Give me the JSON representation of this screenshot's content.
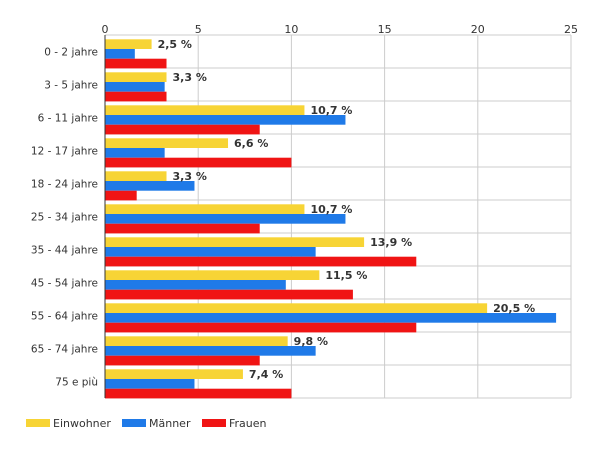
{
  "chart_data": {
    "type": "bar",
    "orientation": "horizontal",
    "categories": [
      "0 - 2 jahre",
      "3 - 5 jahre",
      "6 - 11 jahre",
      "12 - 17 jahre",
      "18 - 24 jahre",
      "25 - 34 jahre",
      "35 - 44 jahre",
      "45 - 54 jahre",
      "55 - 64 jahre",
      "65 - 74 jahre",
      "75 e più"
    ],
    "series": [
      {
        "name": "Einwohner",
        "color": "#f7d435",
        "values": [
          2.5,
          3.3,
          10.7,
          6.6,
          3.3,
          10.7,
          13.9,
          11.5,
          20.5,
          9.8,
          7.4
        ],
        "labels": [
          "2,5 %",
          "3,3 %",
          "10,7 %",
          "6,6 %",
          "3,3 %",
          "10,7 %",
          "13,9 %",
          "11,5 %",
          "20,5 %",
          "9,8 %",
          "7,4 %"
        ]
      },
      {
        "name": "Männer",
        "color": "#1f7ae8",
        "values": [
          1.6,
          3.2,
          12.9,
          3.2,
          4.8,
          12.9,
          11.3,
          9.7,
          24.2,
          11.3,
          4.8
        ]
      },
      {
        "name": "Frauen",
        "color": "#f01414",
        "values": [
          3.3,
          3.3,
          8.3,
          10.0,
          1.7,
          8.3,
          16.7,
          13.3,
          16.7,
          8.3,
          10.0
        ]
      }
    ],
    "xlim": [
      0,
      25
    ],
    "xticks": [
      0,
      5,
      10,
      15,
      20,
      25
    ],
    "tick_labels": [
      "0",
      "5",
      "10",
      "15",
      "20",
      "25"
    ],
    "grid": true,
    "legend_position": "bottom-left"
  }
}
